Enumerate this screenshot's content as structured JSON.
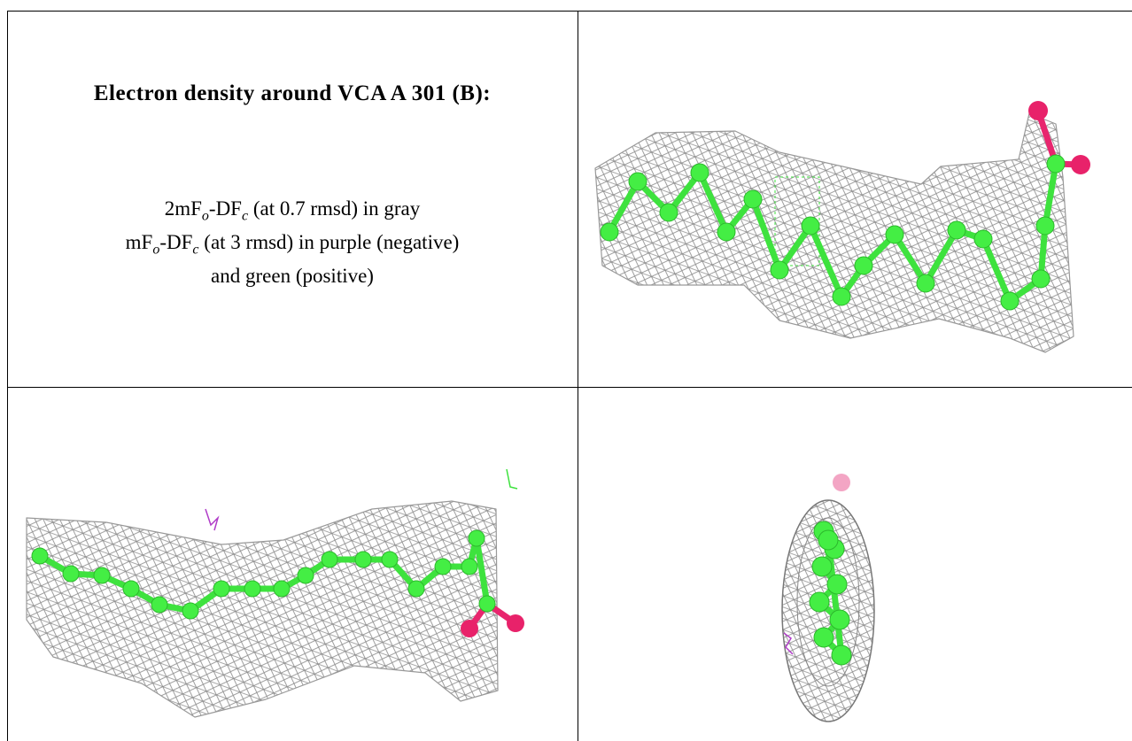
{
  "title": "Electron density around VCA A 301 (B):",
  "legend": [
    [
      "2mF",
      "o",
      "-DF",
      "c",
      " (at 0.7 rmsd) in gray"
    ],
    [
      "mF",
      "o",
      "-DF",
      "c",
      " (at 3 rmsd) in purple (negative)"
    ],
    [
      "and green (positive)"
    ]
  ]
}
